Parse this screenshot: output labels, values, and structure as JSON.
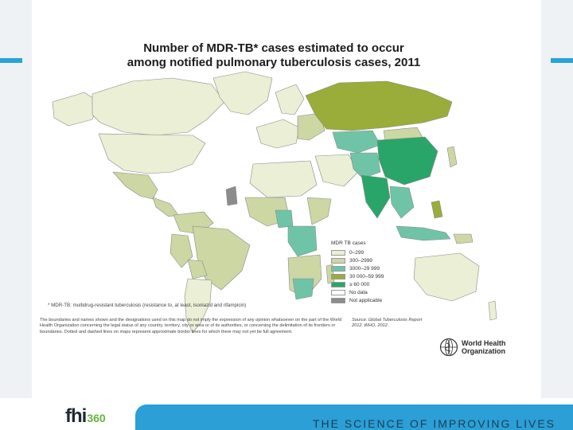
{
  "figure": {
    "title_line1": "Number of MDR-TB* cases estimated to occur",
    "title_line2": "among notified pulmonary tuberculosis cases,  2011",
    "footnote": "* MDR-TB: multidrug-resistant tuberculosis (resistance to, at least, isoniazid and rifampicin)",
    "disclaimer": "The boundaries and names shown and the designations used on this map do not imply the expression of any opinion whatsoever on the part of the World Health Organization concerning the legal status of any country, territory, city or area or of its authorities, or concerning the delimitation of its frontiers or boundaries. Dotted and dashed lines on maps represent approximate border lines for which there may not yet be full agreement.",
    "source": "Source: Global Tuberculosis Report 2012. WHO, 2012.",
    "who_name_line1": "World Health",
    "who_name_line2": "Organization"
  },
  "legend": {
    "title": "MDR TB cases",
    "items": [
      {
        "label": "0–299",
        "color": "#eaefd5"
      },
      {
        "label": "300–2999",
        "color": "#ccd7a4"
      },
      {
        "label": "3000–29 999",
        "color": "#6fc4a8"
      },
      {
        "label": "30 000–59 999",
        "color": "#9aac3a"
      },
      {
        "label": "≥ 60 000",
        "color": "#2aa56a"
      },
      {
        "label": "No data",
        "color": "#ffffff"
      },
      {
        "label": "Not applicable",
        "color": "#8c8c8c"
      }
    ]
  },
  "footer": {
    "logo_main": "fhi",
    "logo_num": "360",
    "tagline": "THE SCIENCE OF IMPROVING LIVES"
  }
}
